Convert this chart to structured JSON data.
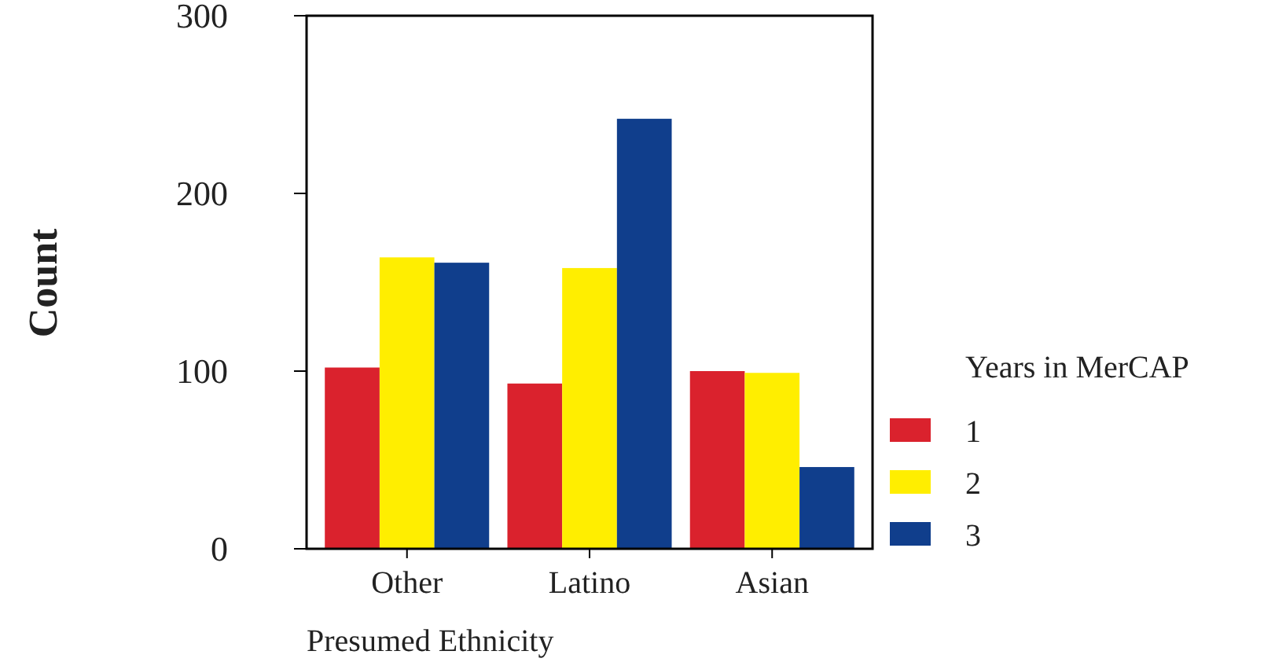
{
  "chart_data": {
    "type": "bar",
    "xlabel": "Presumed Ethnicity",
    "ylabel": "Count",
    "legend_title": "Years in MerCAP",
    "categories": [
      "Other",
      "Latino",
      "Asian"
    ],
    "series": [
      {
        "name": "1",
        "color": "#da222d",
        "values": [
          102,
          93,
          100
        ]
      },
      {
        "name": "2",
        "color": "#ffee00",
        "values": [
          164,
          158,
          99
        ]
      },
      {
        "name": "3",
        "color": "#103e8c",
        "values": [
          161,
          242,
          46
        ]
      }
    ],
    "ylim": [
      0,
      300
    ],
    "yticks": [
      0,
      100,
      200,
      300
    ],
    "grid": false,
    "legend": "right"
  }
}
